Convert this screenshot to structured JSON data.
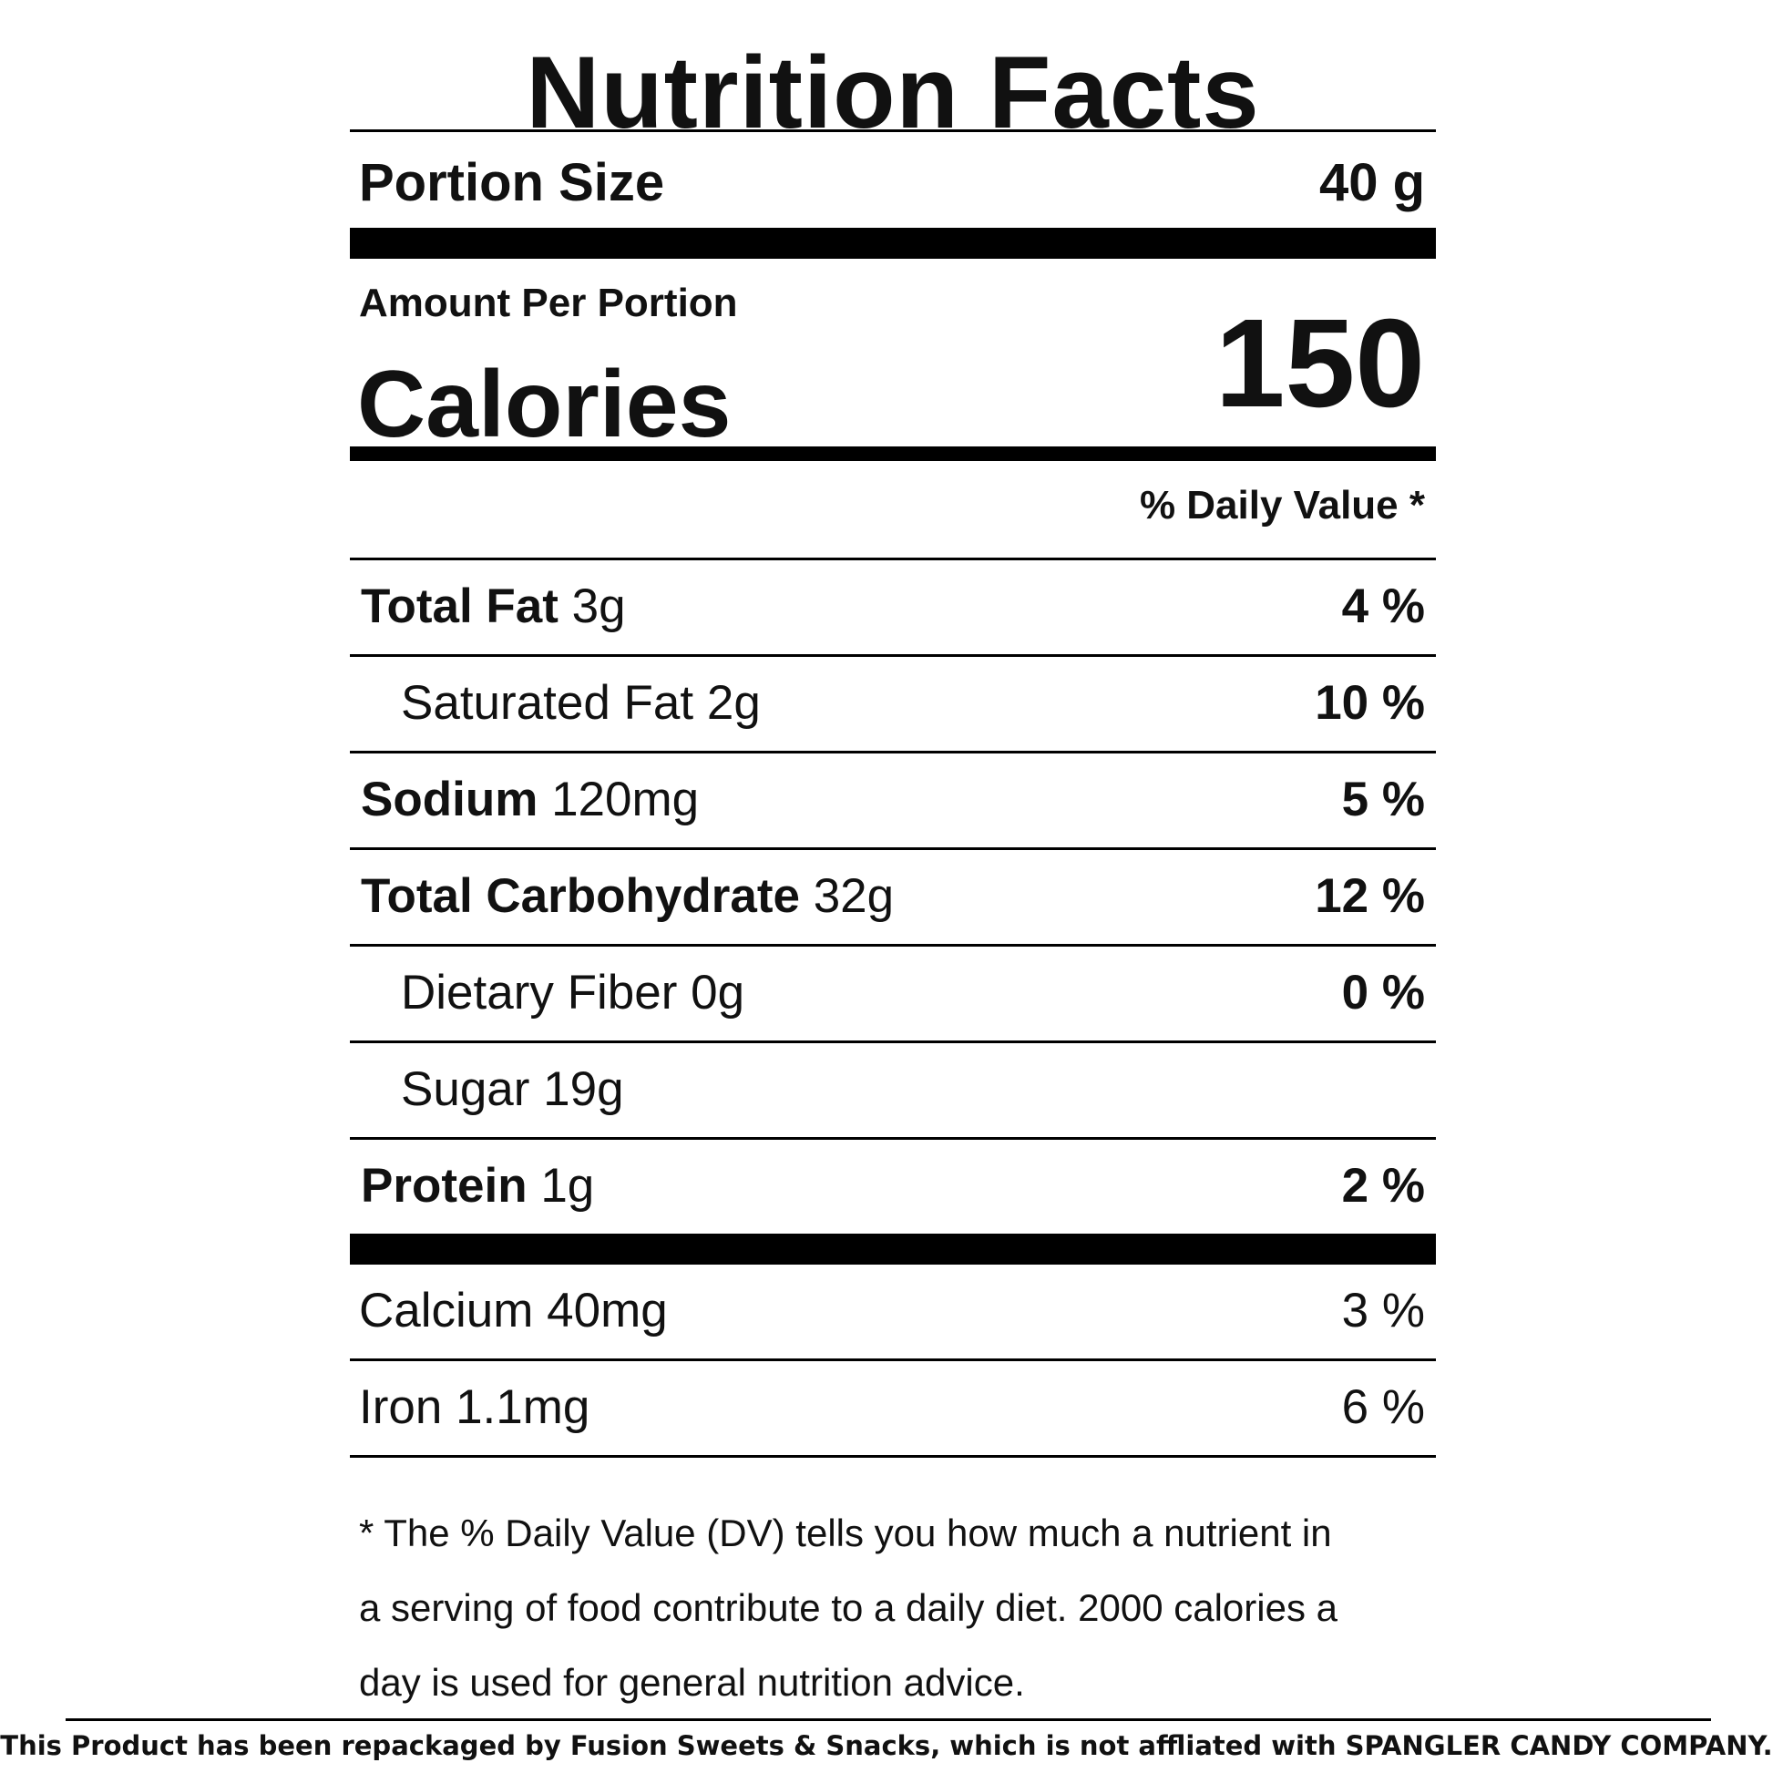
{
  "title": "Nutrition Facts",
  "portion": {
    "label": "Portion Size",
    "value": "40 g"
  },
  "amount_per_portion": "Amount Per Portion",
  "calories": {
    "label": "Calories",
    "value": "150"
  },
  "daily_value_header": "% Daily Value *",
  "nutrients": [
    {
      "name": "Total Fat",
      "amount": "3g",
      "dv": "4 %"
    },
    {
      "name": "Saturated Fat",
      "amount": "2g",
      "dv": "10 %"
    },
    {
      "name": "Sodium",
      "amount": "120mg",
      "dv": "5 %"
    },
    {
      "name": "Total Carbohydrate",
      "amount": "32g",
      "dv": "12 %"
    },
    {
      "name": "Dietary Fiber",
      "amount": "0g",
      "dv": "0 %"
    },
    {
      "name": "Sugar",
      "amount": "19g",
      "dv": ""
    },
    {
      "name": "Protein",
      "amount": "1g",
      "dv": "2 %"
    }
  ],
  "minerals": [
    {
      "name": "Calcium",
      "amount": "40mg",
      "dv": "3 %"
    },
    {
      "name": "Iron",
      "amount": "1.1mg",
      "dv": "6 %"
    }
  ],
  "footnote": {
    "line1": "* The % Daily Value (DV) tells you how much a nutrient in",
    "line2": "a serving of food contribute to a daily diet. 2000 calories a",
    "line3": "day is used for general nutrition advice."
  },
  "disclaimer": "This Product has been repackaged by Fusion Sweets & Snacks, which is not affliated with SPANGLER CANDY COMPANY."
}
